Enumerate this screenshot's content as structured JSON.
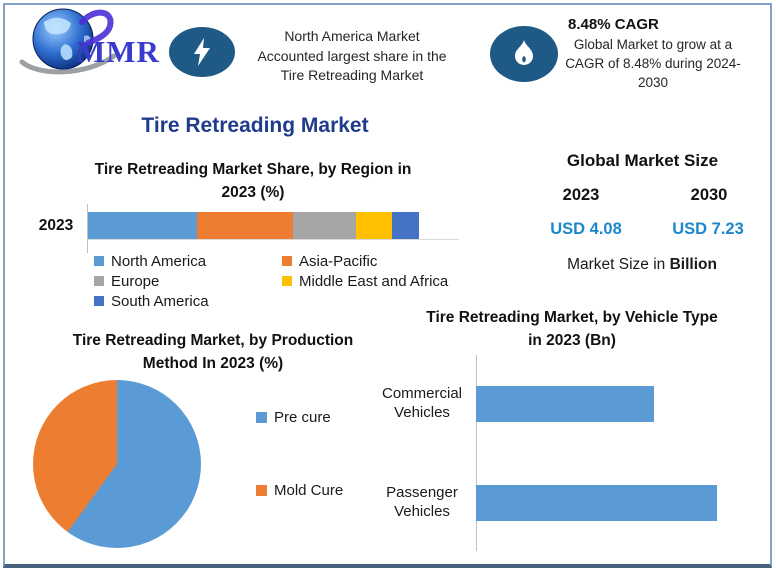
{
  "palette": {
    "navy_title": "#1F3C8C",
    "usd_blue": "#1C87CB",
    "icon_badge_bg": "#1F5A87",
    "brand_text_color": "#3A3ACC",
    "frame_border": "#82A3C9",
    "frame_bottom": "#47637F",
    "series_blue": "#5B9BD5",
    "series_orange": "#ED7D31",
    "series_gray": "#A5A5A5",
    "series_yellow": "#FFC000",
    "series_dark_blue": "#4472C4"
  },
  "brand": {
    "text": "MMR"
  },
  "header": {
    "insight": {
      "lines": [
        "North America Market",
        "Accounted largest share in the",
        "Tire Retreading Market"
      ]
    },
    "cagr": {
      "title": "8.48% CAGR",
      "lines": [
        "Global Market to grow at a",
        "CAGR of 8.48% during 2024-",
        "2030"
      ]
    }
  },
  "main_title": "Tire Retreading Market",
  "market_size": {
    "title": "Global Market Size",
    "year_left": "2023",
    "year_right": "2030",
    "value_left": "USD 4.08",
    "value_right": "USD 7.23",
    "note_prefix": "Market Size in ",
    "note_bold": "Billion"
  },
  "chart_data": [
    {
      "id": "region_share",
      "type": "bar",
      "subtype": "stacked-horizontal",
      "title": "Tire Retreading Market Share, by Region in 2023 (%)",
      "title_lines": [
        "Tire Retreading Market Share, by Region in",
        "2023 (%)"
      ],
      "categories": [
        "2023"
      ],
      "unit": "%",
      "legend_position": "bottom",
      "series": [
        {
          "name": "North America",
          "value": 33,
          "color": "#5B9BD5"
        },
        {
          "name": "Asia-Pacific",
          "value": 29,
          "color": "#ED7D31"
        },
        {
          "name": "Europe",
          "value": 19,
          "color": "#A5A5A5"
        },
        {
          "name": "Middle East and Africa",
          "value": 11,
          "color": "#FFC000"
        },
        {
          "name": "South America",
          "value": 8,
          "color": "#4472C4"
        }
      ]
    },
    {
      "id": "production_method",
      "type": "pie",
      "title": "Tire Retreading Market, by Production Method In 2023 (%)",
      "title_lines": [
        "Tire Retreading Market, by Production",
        "Method In 2023 (%)"
      ],
      "unit": "%",
      "legend_position": "right",
      "slices": [
        {
          "name": "Pre cure",
          "value": 60,
          "color": "#5B9BD5"
        },
        {
          "name": "Mold Cure",
          "value": 40,
          "color": "#ED7D31"
        }
      ]
    },
    {
      "id": "vehicle_type",
      "type": "bar",
      "subtype": "horizontal",
      "title": "Tire Retreading Market, by Vehicle Type in 2023 (Bn)",
      "title_lines": [
        "Tire Retreading Market, by Vehicle Type",
        "in 2023 (Bn)"
      ],
      "categories": [
        "Commercial Vehicles",
        "Passenger Vehicles"
      ],
      "values": [
        1.7,
        2.3
      ],
      "color": "#5B9BD5",
      "unit": "Bn",
      "axis_labels_shown": false
    }
  ]
}
